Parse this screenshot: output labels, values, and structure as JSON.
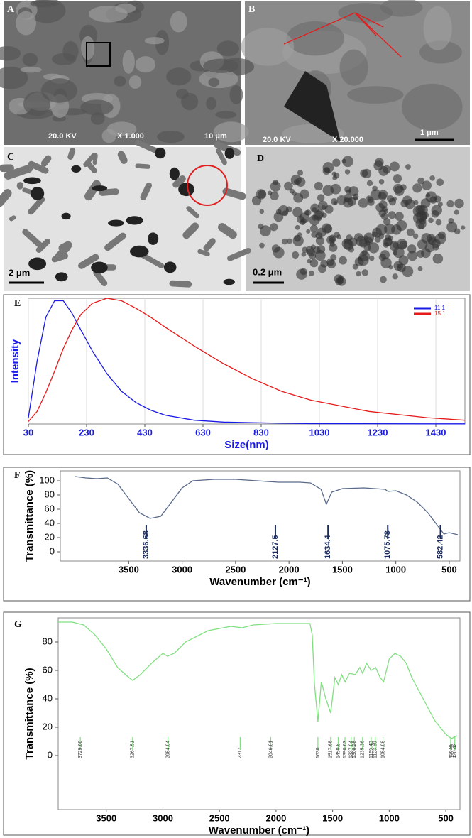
{
  "panels": [
    {
      "label": "A",
      "texts": [
        "20.0 KV",
        "X 1.000",
        "10 μm"
      ]
    },
    {
      "label": "B",
      "texts": [
        "20.0 KV",
        "X 20.000",
        "1 μm"
      ]
    },
    {
      "label": "C",
      "texts": [
        "2 μm"
      ]
    },
    {
      "label": "D",
      "texts": [
        "0.2 μm"
      ]
    }
  ],
  "chart_data": [
    {
      "type": "line",
      "label": "E",
      "xlabel": "Size(nm)",
      "ylabel": "Intensity",
      "x": [
        30,
        60,
        90,
        120,
        150,
        180,
        210,
        250,
        300,
        350,
        400,
        450,
        500,
        600,
        700,
        800,
        900,
        1000,
        1200,
        1400,
        1530
      ],
      "series": [
        {
          "name": "11.1",
          "color": "#1a1ae6",
          "values": [
            5,
            50,
            85,
            98,
            98,
            88,
            75,
            58,
            40,
            26,
            17,
            11,
            7,
            3,
            1.5,
            1,
            0.6,
            0.3,
            0.2,
            0.1,
            0.1
          ]
        },
        {
          "name": "15.1",
          "color": "#e61a1a",
          "values": [
            2,
            10,
            25,
            42,
            60,
            75,
            87,
            96,
            100,
            98,
            92,
            85,
            77,
            62,
            48,
            36,
            26,
            19,
            10,
            5,
            3
          ]
        }
      ],
      "xlim": [
        30,
        1530
      ],
      "ylim": [
        0,
        100
      ],
      "xticks": [
        30,
        230,
        430,
        630,
        830,
        1030,
        1230,
        1430
      ],
      "grid": true,
      "legend": "upper right"
    },
    {
      "type": "line",
      "label": "F",
      "xlabel": "Wavenumber (cm⁻¹)",
      "ylabel": "Transmittance (%)",
      "color": "#5a6a8a",
      "x": [
        4000,
        3900,
        3800,
        3700,
        3600,
        3500,
        3400,
        3300,
        3200,
        3100,
        3000,
        2900,
        2700,
        2500,
        2300,
        2100,
        1900,
        1800,
        1700,
        1650,
        1600,
        1500,
        1300,
        1100,
        1075,
        1000,
        900,
        800,
        700,
        600,
        550,
        500,
        420
      ],
      "values": [
        106,
        104,
        103,
        104,
        95,
        75,
        55,
        47,
        50,
        70,
        90,
        100,
        102,
        102,
        100,
        98,
        98,
        97,
        88,
        67,
        84,
        89,
        90,
        88,
        85,
        86,
        80,
        70,
        55,
        35,
        25,
        27,
        24
      ],
      "peaks": [
        3336.68,
        2127.5,
        1634.4,
        1075.78,
        582.42
      ],
      "xlim": [
        4140,
        400
      ],
      "ylim": [
        -13,
        114
      ],
      "xticks": [
        3500,
        3000,
        2500,
        2000,
        1500,
        1000,
        500
      ],
      "yticks": [
        0,
        20,
        40,
        60,
        80,
        100
      ],
      "grid": false
    },
    {
      "type": "line",
      "label": "G",
      "xlabel": "Wavenumber (cm⁻¹)",
      "ylabel": "Transmittance (%)",
      "color": "#80e080",
      "x": [
        3925,
        3800,
        3700,
        3600,
        3500,
        3400,
        3300,
        3267,
        3200,
        3100,
        3000,
        2960,
        2900,
        2800,
        2600,
        2400,
        2300,
        2200,
        2000,
        1800,
        1700,
        1680,
        1660,
        1630,
        1600,
        1560,
        1517,
        1480,
        1450,
        1420,
        1390,
        1350,
        1300,
        1260,
        1235,
        1200,
        1160,
        1120,
        1080,
        1050,
        1000,
        950,
        900,
        850,
        800,
        700,
        600,
        500,
        450,
        400
      ],
      "values": [
        94,
        94,
        92,
        85,
        75,
        62,
        55,
        53,
        57,
        65,
        72,
        70,
        72,
        80,
        88,
        91,
        90,
        92,
        93,
        93,
        93,
        85,
        50,
        24,
        52,
        40,
        30,
        55,
        50,
        57,
        52,
        58,
        57,
        62,
        58,
        65,
        60,
        62,
        55,
        52,
        68,
        72,
        70,
        65,
        55,
        40,
        25,
        15,
        12,
        14
      ],
      "peaks": [
        3729.66,
        3267.51,
        2954.94,
        2317.0,
        2046.81,
        1630.0,
        1517.68,
        1450.8,
        1390.63,
        1337.04,
        1308.28,
        1235.36,
        1159.43,
        1123.69,
        1054.98,
        456.89,
        420.42
      ],
      "xlim": [
        3925,
        375
      ],
      "ylim": [
        -38,
        97
      ],
      "xticks": [
        3500,
        3000,
        2500,
        2000,
        1500,
        1000,
        500
      ],
      "yticks": [
        0,
        20,
        40,
        60,
        80
      ],
      "grid": false
    }
  ]
}
